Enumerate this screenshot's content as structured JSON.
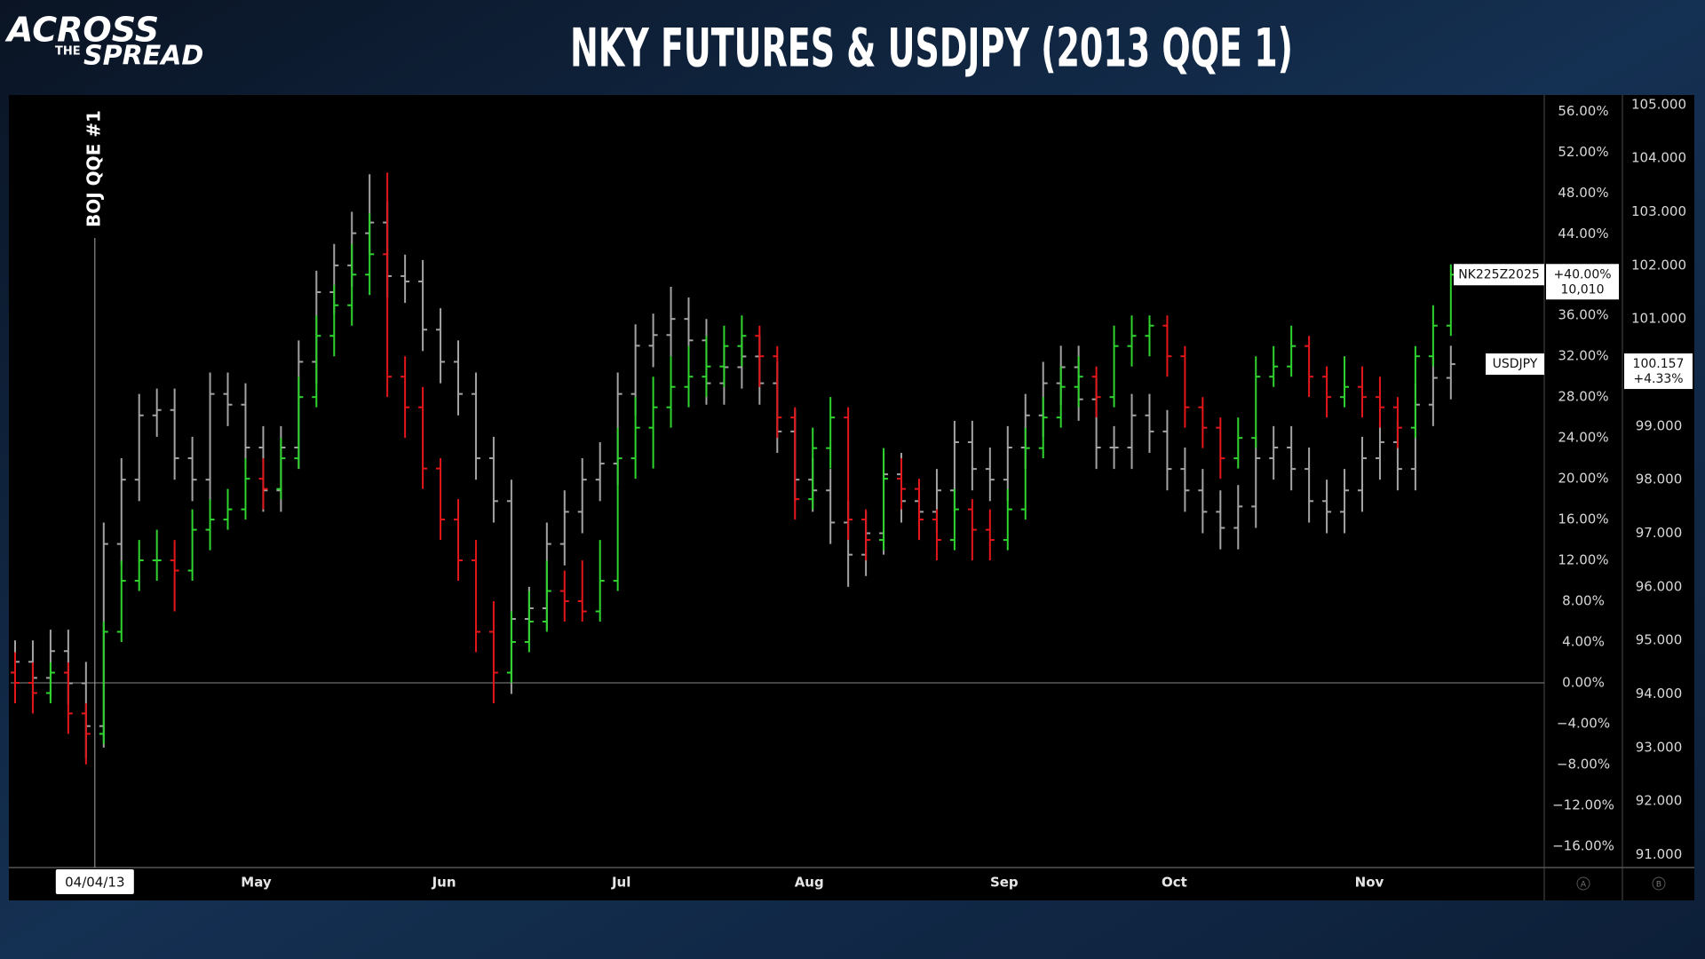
{
  "header": {
    "logo": [
      "ACROSS",
      "THE",
      "SPREAD"
    ]
  },
  "chart_data": {
    "type": "ohlc",
    "title": "NKY FUTURES & USDJPY (2013 QQE 1)",
    "xlim": [
      -0.25,
      86.27
    ],
    "xticks": [
      {
        "value": 4.5,
        "label": "04/04/13"
      },
      {
        "value": 13.6,
        "label": "May"
      },
      {
        "value": 24.2,
        "label": "Jun"
      },
      {
        "value": 34.2,
        "label": "Jul"
      },
      {
        "value": 44.8,
        "label": "Aug"
      },
      {
        "value": 55.8,
        "label": "Sep"
      },
      {
        "value": 65.4,
        "label": "Oct"
      },
      {
        "value": 76.4,
        "label": "Nov"
      }
    ],
    "ylim": [
      -18.1,
      57.6
    ],
    "yticks": [
      {
        "value": -16,
        "label": "−16.00%"
      },
      {
        "value": -12,
        "label": "−12.00%"
      },
      {
        "value": -8,
        "label": "−8.00%"
      },
      {
        "value": -4,
        "label": "−4.00%"
      },
      {
        "value": 0,
        "label": "0.00%"
      },
      {
        "value": 4,
        "label": "4.00%"
      },
      {
        "value": 8,
        "label": "8.00%"
      },
      {
        "value": 12,
        "label": "12.00%"
      },
      {
        "value": 16,
        "label": "16.00%"
      },
      {
        "value": 20,
        "label": "20.00%"
      },
      {
        "value": 24,
        "label": "24.00%"
      },
      {
        "value": 28,
        "label": "28.00%"
      },
      {
        "value": 32,
        "label": "32.00%"
      },
      {
        "value": 36,
        "label": "36.00%"
      },
      {
        "value": 40,
        "label": "40.00%"
      },
      {
        "value": 44,
        "label": "44.00%"
      },
      {
        "value": 48,
        "label": "48.00%"
      },
      {
        "value": 52,
        "label": "52.00%"
      },
      {
        "value": 56,
        "label": "56.00%"
      }
    ],
    "y2lim": [
      90.76,
      105.18
    ],
    "y2ticks": [
      {
        "value": 91,
        "label": "91.000"
      },
      {
        "value": 92,
        "label": "92.000"
      },
      {
        "value": 93,
        "label": "93.000"
      },
      {
        "value": 94,
        "label": "94.000"
      },
      {
        "value": 95,
        "label": "95.000"
      },
      {
        "value": 96,
        "label": "96.000"
      },
      {
        "value": 97,
        "label": "97.000"
      },
      {
        "value": 98,
        "label": "98.000"
      },
      {
        "value": 99,
        "label": "99.000"
      },
      {
        "value": 100,
        "label": "100.000"
      },
      {
        "value": 101,
        "label": "101.000"
      },
      {
        "value": 102,
        "label": "102.000"
      },
      {
        "value": 103,
        "label": "103.000"
      },
      {
        "value": 104,
        "label": "104.000"
      },
      {
        "value": 105,
        "label": "105.000"
      }
    ],
    "annotation": {
      "text": "BOJ QQE #1",
      "x": 4.5
    },
    "hline": 0,
    "axis_badges": [
      "A",
      "B"
    ],
    "series": [
      {
        "name": "NK225Z2025",
        "up_color": "#2fd42f",
        "down_color": "#e3161a",
        "open": [
          1,
          0,
          -1,
          1,
          -3,
          -5,
          5,
          10,
          12,
          12,
          11,
          15,
          16,
          17,
          20,
          19,
          22,
          28,
          34,
          37,
          40,
          42,
          30,
          27,
          21,
          16,
          12,
          5,
          1,
          4,
          6,
          9,
          8,
          7,
          10,
          22,
          25,
          27,
          29,
          30,
          31,
          33,
          34,
          32,
          26,
          18,
          23,
          26,
          16,
          14,
          20,
          19,
          16,
          14,
          17,
          15,
          14,
          17,
          23,
          26,
          29,
          30,
          28,
          33,
          34,
          35,
          32,
          27,
          25,
          22,
          24,
          30,
          31,
          33,
          30,
          28,
          29,
          28,
          27,
          25,
          32,
          35
        ],
        "high": [
          3,
          2,
          2,
          2,
          -2,
          6,
          12,
          14,
          15,
          14,
          17,
          18,
          19,
          22,
          22,
          24,
          30,
          36,
          39,
          43,
          46,
          50,
          32,
          29,
          22,
          18,
          14,
          8,
          7,
          9,
          12,
          11,
          12,
          14,
          25,
          28,
          30,
          32,
          33,
          34,
          35,
          36,
          35,
          33,
          27,
          25,
          28,
          27,
          17,
          23,
          22,
          20,
          17,
          19,
          18,
          17,
          19,
          25,
          28,
          31,
          32,
          31,
          35,
          36,
          36,
          36,
          33,
          28,
          26,
          26,
          32,
          33,
          35,
          34,
          31,
          32,
          31,
          30,
          28,
          33,
          37,
          41
        ],
        "low": [
          -2,
          -3,
          -2,
          -5,
          -8,
          -6,
          4,
          9,
          10,
          7,
          10,
          13,
          15,
          16,
          17,
          18,
          21,
          27,
          32,
          35,
          38,
          28,
          24,
          19,
          14,
          10,
          3,
          -2,
          0,
          3,
          5,
          6,
          6,
          6,
          9,
          20,
          21,
          25,
          27,
          28,
          29,
          31,
          29,
          24,
          16,
          17,
          21,
          14,
          12,
          13,
          17,
          14,
          12,
          13,
          12,
          12,
          13,
          16,
          22,
          25,
          27,
          26,
          27,
          31,
          32,
          30,
          25,
          23,
          20,
          21,
          23,
          29,
          30,
          28,
          26,
          27,
          26,
          25,
          23,
          24,
          31,
          34
        ],
        "close": [
          0,
          -1,
          1,
          -3,
          -5,
          5,
          10,
          12,
          12,
          11,
          15,
          16,
          17,
          20,
          19,
          22,
          28,
          34,
          37,
          40,
          42,
          30,
          27,
          21,
          16,
          12,
          5,
          1,
          4,
          6,
          9,
          8,
          7,
          10,
          22,
          25,
          27,
          29,
          30,
          31,
          33,
          34,
          32,
          26,
          18,
          23,
          26,
          16,
          14,
          20,
          19,
          16,
          14,
          17,
          15,
          14,
          17,
          23,
          26,
          29,
          30,
          28,
          33,
          34,
          35,
          32,
          27,
          25,
          22,
          24,
          30,
          31,
          33,
          30,
          28,
          29,
          28,
          27,
          25,
          32,
          35,
          40
        ],
        "last_labels": [
          "+40.00%",
          "10,010"
        ]
      },
      {
        "name": "USDJPY",
        "axis": "y2",
        "color": "#a3a3a3",
        "open": [
          94.4,
          94.6,
          94.3,
          94.8,
          94.2,
          93.4,
          96.8,
          98.0,
          99.2,
          99.3,
          98.4,
          98.0,
          99.6,
          99.4,
          98.6,
          97.8,
          98.6,
          100.2,
          101.5,
          102.0,
          102.6,
          102.8,
          101.8,
          101.7,
          100.8,
          100.2,
          99.6,
          98.4,
          97.6,
          95.4,
          95.6,
          96.8,
          97.4,
          98.0,
          98.3,
          99.6,
          100.5,
          100.7,
          101.0,
          100.6,
          99.8,
          100.1,
          100.3,
          99.8,
          98.9,
          98.0,
          97.8,
          97.2,
          96.6,
          97.0,
          98.1,
          97.6,
          97.4,
          97.8,
          98.7,
          98.2,
          98.0,
          98.6,
          99.2,
          99.8,
          100.1,
          99.5,
          98.6,
          98.6,
          99.2,
          98.9,
          98.2,
          97.8,
          97.4,
          97.1,
          97.5,
          98.4,
          98.6,
          98.2,
          97.6,
          97.4,
          97.8,
          98.4,
          98.7,
          98.2,
          99.4,
          99.9
        ],
        "high": [
          95.0,
          95.0,
          95.2,
          95.2,
          94.6,
          97.2,
          98.4,
          99.6,
          99.7,
          99.7,
          98.8,
          100.0,
          100.0,
          99.8,
          99.0,
          99.0,
          100.6,
          101.9,
          102.4,
          103.0,
          103.7,
          103.2,
          102.2,
          102.1,
          101.2,
          100.6,
          100.0,
          98.8,
          98.0,
          96.0,
          97.2,
          97.8,
          98.4,
          98.7,
          100.0,
          100.9,
          101.1,
          101.6,
          101.4,
          101.0,
          100.5,
          100.7,
          100.7,
          100.2,
          99.3,
          98.4,
          98.2,
          97.6,
          97.4,
          98.5,
          98.5,
          98.0,
          98.2,
          99.1,
          99.1,
          98.6,
          99.0,
          99.6,
          100.2,
          100.5,
          100.5,
          99.9,
          99.0,
          99.6,
          99.6,
          99.3,
          98.6,
          98.2,
          97.8,
          97.9,
          98.8,
          99.0,
          99.0,
          98.6,
          98.0,
          98.2,
          98.8,
          99.1,
          99.1,
          99.8,
          100.3,
          100.5
        ],
        "low": [
          94.0,
          93.9,
          93.9,
          93.8,
          92.8,
          93.0,
          96.4,
          97.6,
          98.8,
          98.0,
          97.6,
          97.6,
          99.0,
          98.2,
          97.4,
          97.4,
          98.2,
          99.8,
          101.1,
          101.6,
          102.2,
          101.4,
          101.3,
          100.4,
          99.8,
          99.2,
          98.0,
          97.2,
          94.0,
          95.0,
          95.2,
          96.4,
          97.0,
          97.6,
          97.9,
          99.2,
          100.1,
          100.3,
          100.2,
          99.4,
          99.4,
          99.7,
          99.4,
          98.5,
          97.6,
          97.4,
          96.8,
          96.0,
          96.2,
          96.6,
          97.2,
          97.0,
          97.0,
          97.4,
          97.8,
          97.6,
          97.6,
          98.2,
          98.8,
          99.4,
          99.1,
          98.2,
          98.2,
          98.2,
          98.5,
          97.8,
          97.4,
          97.0,
          96.7,
          96.7,
          97.1,
          98.0,
          97.8,
          97.2,
          97.0,
          97.0,
          97.4,
          98.0,
          97.8,
          97.8,
          99.0,
          99.5
        ],
        "close": [
          94.6,
          94.3,
          94.8,
          94.2,
          93.4,
          96.8,
          98.0,
          99.2,
          99.3,
          98.4,
          98.0,
          99.6,
          99.4,
          98.6,
          97.8,
          98.6,
          100.2,
          101.5,
          102.0,
          102.6,
          102.8,
          101.8,
          101.7,
          100.8,
          100.2,
          99.6,
          98.4,
          97.6,
          95.4,
          95.6,
          96.8,
          97.4,
          98.0,
          98.3,
          99.6,
          100.5,
          100.7,
          101.0,
          100.6,
          99.8,
          100.1,
          100.3,
          99.8,
          98.9,
          98.0,
          97.8,
          97.2,
          96.6,
          97.0,
          98.1,
          97.6,
          97.4,
          97.8,
          98.7,
          98.2,
          98.0,
          98.6,
          99.2,
          99.8,
          100.1,
          99.5,
          98.6,
          98.6,
          99.2,
          98.9,
          98.2,
          97.8,
          97.4,
          97.1,
          97.5,
          98.4,
          98.6,
          98.2,
          97.6,
          97.4,
          97.8,
          98.4,
          98.7,
          98.2,
          99.4,
          99.9,
          100.157
        ],
        "last_labels": [
          "100.157",
          "+4.33%"
        ]
      }
    ]
  }
}
